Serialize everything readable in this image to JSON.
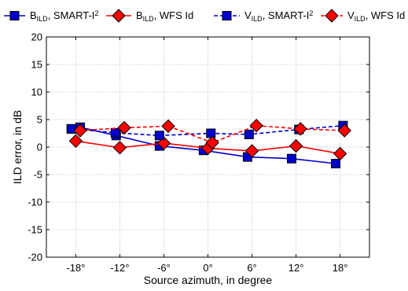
{
  "chart_data": {
    "type": "line",
    "xlabel": "Source azimuth, in degree",
    "ylabel": "ILD error, in dB",
    "xlim": [
      -22,
      22
    ],
    "ylim": [
      -20,
      20
    ],
    "x_ticks": [
      {
        "value": -18,
        "label": "-18°"
      },
      {
        "value": -12,
        "label": "-12°"
      },
      {
        "value": -6,
        "label": "-6°"
      },
      {
        "value": 0,
        "label": "0°"
      },
      {
        "value": 6,
        "label": "6°"
      },
      {
        "value": 12,
        "label": "12°"
      },
      {
        "value": 18,
        "label": "18°"
      }
    ],
    "y_ticks": [
      {
        "value": -20,
        "label": "-20"
      },
      {
        "value": -15,
        "label": "-15"
      },
      {
        "value": -10,
        "label": "-10"
      },
      {
        "value": -5,
        "label": "-5"
      },
      {
        "value": 0,
        "label": "0"
      },
      {
        "value": 5,
        "label": "5"
      },
      {
        "value": 10,
        "label": "10"
      },
      {
        "value": 15,
        "label": "15"
      },
      {
        "value": 20,
        "label": "20"
      }
    ],
    "grid": true,
    "legend_position": "top",
    "series": [
      {
        "name": "B_ILD, SMART-I^2",
        "label_main": "B",
        "label_sub": "ILD",
        "label_rest": ", SMART-I",
        "label_sup": "2",
        "color": "#0000cc",
        "line": "solid",
        "marker": "square",
        "points": [
          {
            "x": -18.6,
            "y": 3.3
          },
          {
            "x": -17.4,
            "y": 3.6
          },
          {
            "x": -12.5,
            "y": 2.1
          },
          {
            "x": -6.6,
            "y": 0.2
          },
          {
            "x": -0.6,
            "y": -0.6
          },
          {
            "x": 5.4,
            "y": -1.8
          },
          {
            "x": 11.4,
            "y": -2.1
          },
          {
            "x": 17.4,
            "y": -3.0
          }
        ]
      },
      {
        "name": "B_ILD, WFS Id",
        "label_main": "B",
        "label_sub": "ILD",
        "label_rest": ", WFS Id",
        "label_sup": "",
        "color": "#ff0000",
        "line": "solid",
        "marker": "diamond",
        "points": [
          {
            "x": -18.0,
            "y": 1.1
          },
          {
            "x": -12.0,
            "y": -0.1
          },
          {
            "x": -6.0,
            "y": 0.7
          },
          {
            "x": 0.0,
            "y": -0.2
          },
          {
            "x": 6.0,
            "y": -0.7
          },
          {
            "x": 12.0,
            "y": 0.2
          },
          {
            "x": 18.0,
            "y": -1.2
          }
        ]
      },
      {
        "name": "V_ILD, SMART-I^2",
        "label_main": "V",
        "label_sub": "ILD",
        "label_rest": ", SMART-I",
        "label_sup": "2",
        "color": "#0000cc",
        "line": "dashed",
        "marker": "square",
        "points": [
          {
            "x": -18.6,
            "y": 3.3
          },
          {
            "x": -12.6,
            "y": 2.6
          },
          {
            "x": -6.6,
            "y": 2.1
          },
          {
            "x": 0.4,
            "y": 2.5
          },
          {
            "x": 5.6,
            "y": 2.3
          },
          {
            "x": 12.4,
            "y": 3.2
          },
          {
            "x": 18.4,
            "y": 3.9
          }
        ]
      },
      {
        "name": "V_ILD, WFS Id",
        "label_main": "V",
        "label_sub": "ILD",
        "label_rest": ", WFS Id",
        "label_sup": "",
        "color": "#ff0000",
        "line": "dashed",
        "marker": "diamond",
        "points": [
          {
            "x": -17.4,
            "y": 3.0
          },
          {
            "x": -11.4,
            "y": 3.5
          },
          {
            "x": -5.4,
            "y": 3.8
          },
          {
            "x": 0.6,
            "y": 0.8
          },
          {
            "x": 6.6,
            "y": 3.9
          },
          {
            "x": 12.6,
            "y": 3.3
          },
          {
            "x": 18.6,
            "y": 3.0
          }
        ]
      }
    ]
  }
}
